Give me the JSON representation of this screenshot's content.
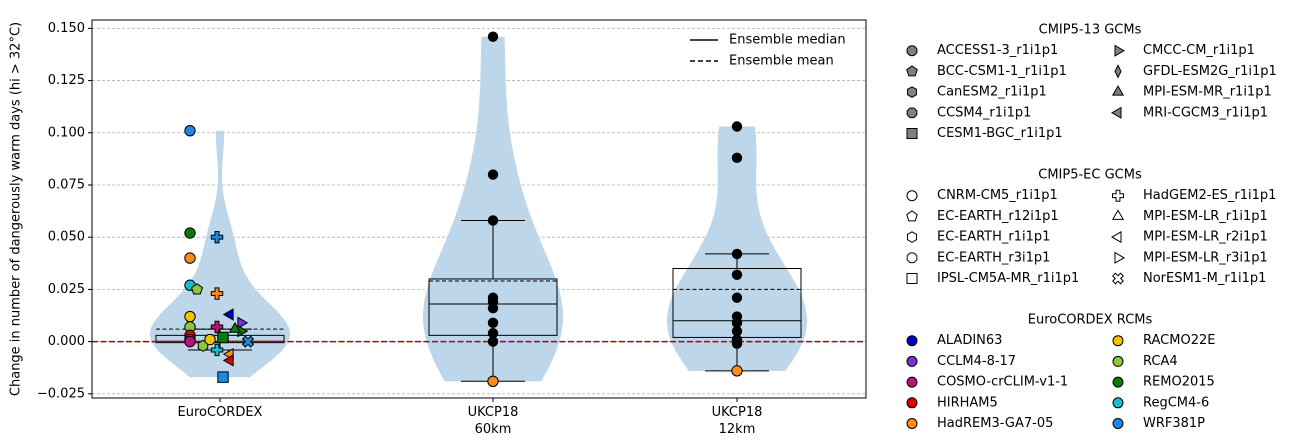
{
  "chart_data": {
    "type": "violin",
    "y_label": "Change in number of dangerously warm days (hi > 32°C)",
    "ylim": [
      -0.027,
      0.154
    ],
    "yticks": [
      {
        "value": -0.025,
        "label": "−0.025"
      },
      {
        "value": 0,
        "label": "0.000"
      },
      {
        "value": 0.025,
        "label": "0.025"
      },
      {
        "value": 0.05,
        "label": "0.050"
      },
      {
        "value": 0.075,
        "label": "0.075"
      },
      {
        "value": 0.1,
        "label": "0.100"
      },
      {
        "value": 0.125,
        "label": "0.125"
      },
      {
        "value": 0.15,
        "label": "0.150"
      }
    ],
    "grid": true,
    "violin_color": "#b9d4e8",
    "reference_line": {
      "value": 0,
      "color": "#b00000"
    },
    "key": [
      {
        "label": "Ensemble median",
        "style": "solid"
      },
      {
        "label": "Ensemble mean",
        "style": "dashed"
      }
    ],
    "groups": [
      {
        "name": "EuroCORDEX",
        "q1": -0.0005,
        "median": 0.0002,
        "q3": 0.003,
        "whisker_low": -0.004,
        "whisker_high": 0.006,
        "mean": 0.006,
        "points": [
          {
            "value": 0.101,
            "gcm": "CNRM-CM5_r1i1p1",
            "rcm": "WRF381P"
          },
          {
            "value": 0.052,
            "gcm": "CNRM-CM5_r1i1p1",
            "rcm": "REMO2015"
          },
          {
            "value": 0.04,
            "gcm": "CNRM-CM5_r1i1p1",
            "rcm": "HadREM3-GA7-05"
          },
          {
            "value": 0.027,
            "gcm": "CNRM-CM5_r1i1p1",
            "rcm": "RegCM4-6"
          },
          {
            "value": 0.012,
            "gcm": "CNRM-CM5_r1i1p1",
            "rcm": "RACMO22E"
          },
          {
            "value": 0.007,
            "gcm": "CNRM-CM5_r1i1p1",
            "rcm": "RCA4"
          },
          {
            "value": 0.003,
            "gcm": "CNRM-CM5_r1i1p1",
            "rcm": "HIRHAM5"
          },
          {
            "value": 0.001,
            "gcm": "CNRM-CM5_r1i1p1",
            "rcm": "CCLM4-8-17"
          },
          {
            "value": 0.0,
            "gcm": "CNRM-CM5_r1i1p1",
            "rcm": "COSMO-crCLIM-v1-1"
          },
          {
            "value": 0.05,
            "gcm": "HadGEM2-ES_r1i1p1",
            "rcm": "WRF381P"
          },
          {
            "value": 0.023,
            "gcm": "HadGEM2-ES_r1i1p1",
            "rcm": "HadREM3-GA7-05"
          },
          {
            "value": 0.007,
            "gcm": "HadGEM2-ES_r1i1p1",
            "rcm": "COSMO-crCLIM-v1-1"
          },
          {
            "value": -0.004,
            "gcm": "HadGEM2-ES_r1i1p1",
            "rcm": "RegCM4-6"
          },
          {
            "value": 0.025,
            "gcm": "EC-EARTH_r12i1p1",
            "rcm": "RCA4"
          },
          {
            "value": -0.002,
            "gcm": "EC-EARTH_r1i1p1",
            "rcm": "RCA4"
          },
          {
            "value": 0.001,
            "gcm": "EC-EARTH_r3i1p1",
            "rcm": "RACMO22E"
          },
          {
            "value": 0.002,
            "gcm": "IPSL-CM5A-MR_r1i1p1",
            "rcm": "REMO2015"
          },
          {
            "value": -0.017,
            "gcm": "IPSL-CM5A-MR_r1i1p1",
            "rcm": "WRF381P"
          },
          {
            "value": 0.013,
            "gcm": "MPI-ESM-LR_r2i1p1",
            "rcm": "ALADIN63"
          },
          {
            "value": -0.006,
            "gcm": "MPI-ESM-LR_r2i1p1",
            "rcm": "HadREM3-GA7-05"
          },
          {
            "value": -0.009,
            "gcm": "MPI-ESM-LR_r2i1p1",
            "rcm": "HIRHAM5"
          },
          {
            "value": 0.009,
            "gcm": "MPI-ESM-LR_r3i1p1",
            "rcm": "CCLM4-8-17"
          },
          {
            "value": 0.005,
            "gcm": "MPI-ESM-LR_r3i1p1",
            "rcm": "REMO2015"
          },
          {
            "value": 0.006,
            "gcm": "MPI-ESM-LR_r1i1p1",
            "rcm": "REMO2015"
          },
          {
            "value": 0.0,
            "gcm": "NorESM1-M_r1i1p1",
            "rcm": "WRF381P"
          }
        ]
      },
      {
        "name": "UKCP18\n60km",
        "q1": 0.003,
        "median": 0.018,
        "q3": 0.03,
        "whisker_low": -0.019,
        "whisker_high": 0.058,
        "mean": 0.029,
        "point_color": "#000000",
        "points": [
          {
            "value": 0.146
          },
          {
            "value": 0.08
          },
          {
            "value": 0.058
          },
          {
            "value": 0.021
          },
          {
            "value": 0.019
          },
          {
            "value": 0.016
          },
          {
            "value": 0.009
          },
          {
            "value": 0.004
          },
          {
            "value": 0.0
          },
          {
            "value": -0.019,
            "rcm": "HadREM3-GA7-05"
          }
        ]
      },
      {
        "name": "UKCP18\n12km",
        "q1": 0.002,
        "median": 0.01,
        "q3": 0.035,
        "whisker_low": -0.014,
        "whisker_high": 0.042,
        "mean": 0.025,
        "point_color": "#000000",
        "points": [
          {
            "value": 0.103
          },
          {
            "value": 0.088
          },
          {
            "value": 0.042
          },
          {
            "value": 0.032
          },
          {
            "value": 0.021
          },
          {
            "value": 0.012
          },
          {
            "value": 0.009
          },
          {
            "value": 0.005
          },
          {
            "value": 0.001
          },
          {
            "value": -0.001
          },
          {
            "value": -0.014,
            "rcm": "HadREM3-GA7-05"
          }
        ]
      }
    ],
    "legend_groups": [
      {
        "title": "CMIP5-13 GCMs",
        "marker_fill": "#808080",
        "entries": [
          {
            "name": "ACCESS1-3_r1i1p1",
            "marker": "circle"
          },
          {
            "name": "BCC-CSM1-1_r1i1p1",
            "marker": "pentagon"
          },
          {
            "name": "CanESM2_r1i1p1",
            "marker": "hexagon"
          },
          {
            "name": "CCSM4_r1i1p1",
            "marker": "octagon"
          },
          {
            "name": "CESM1-BGC_r1i1p1",
            "marker": "square"
          },
          {
            "name": "CMCC-CM_r1i1p1",
            "marker": "tri-right"
          },
          {
            "name": "GFDL-ESM2G_r1i1p1",
            "marker": "thin-diamond"
          },
          {
            "name": "MPI-ESM-MR_r1i1p1",
            "marker": "tri-up"
          },
          {
            "name": "MRI-CGCM3_r1i1p1",
            "marker": "tri-left"
          }
        ]
      },
      {
        "title": "CMIP5-EC GCMs",
        "marker_fill": "#ffffff",
        "entries": [
          {
            "name": "CNRM-CM5_r1i1p1",
            "marker": "circle"
          },
          {
            "name": "EC-EARTH_r12i1p1",
            "marker": "pentagon"
          },
          {
            "name": "EC-EARTH_r1i1p1",
            "marker": "hexagon"
          },
          {
            "name": "EC-EARTH_r3i1p1",
            "marker": "octagon"
          },
          {
            "name": "IPSL-CM5A-MR_r1i1p1",
            "marker": "square"
          },
          {
            "name": "HadGEM2-ES_r1i1p1",
            "marker": "plus"
          },
          {
            "name": "MPI-ESM-LR_r1i1p1",
            "marker": "tri-up"
          },
          {
            "name": "MPI-ESM-LR_r2i1p1",
            "marker": "tri-left"
          },
          {
            "name": "MPI-ESM-LR_r3i1p1",
            "marker": "tri-right"
          },
          {
            "name": "NorESM1-M_r1i1p1",
            "marker": "x"
          }
        ]
      },
      {
        "title": "EuroCORDEX RCMs",
        "entries": [
          {
            "name": "ALADIN63",
            "color": "#0000c8"
          },
          {
            "name": "CCLM4-8-17",
            "color": "#7b2fd6"
          },
          {
            "name": "COSMO-crCLIM-v1-1",
            "color": "#c0117a"
          },
          {
            "name": "HIRHAM5",
            "color": "#e00000"
          },
          {
            "name": "HadREM3-GA7-05",
            "color": "#ff8c1a"
          },
          {
            "name": "RACMO22E",
            "color": "#f2c500"
          },
          {
            "name": "RCA4",
            "color": "#8cc63f"
          },
          {
            "name": "REMO2015",
            "color": "#0a7a0a"
          },
          {
            "name": "RegCM4-6",
            "color": "#18bfc8"
          },
          {
            "name": "WRF381P",
            "color": "#1e88e5"
          }
        ]
      }
    ]
  }
}
